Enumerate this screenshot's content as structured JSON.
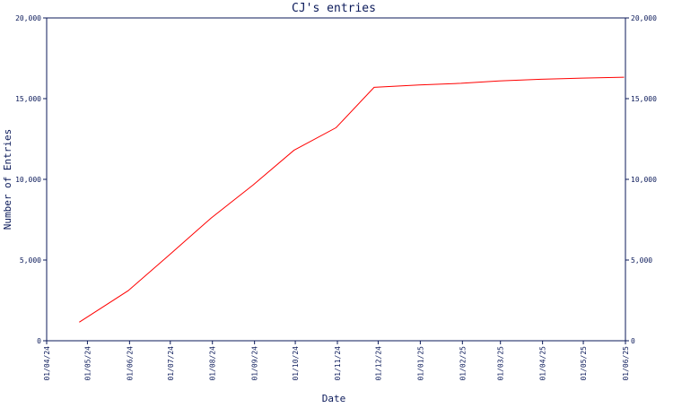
{
  "chart_data": {
    "type": "line",
    "title": "CJ's entries",
    "xlabel": "Date",
    "ylabel": "Number of Entries",
    "x_ticks": [
      "01/04/24",
      "01/05/24",
      "01/06/24",
      "01/07/24",
      "01/08/24",
      "01/09/24",
      "01/10/24",
      "01/11/24",
      "01/12/24",
      "01/01/25",
      "01/02/25",
      "01/03/25",
      "01/04/25",
      "01/05/25",
      "01/06/25"
    ],
    "y_ticks": [
      "0",
      "5,000",
      "10,000",
      "15,000",
      "20,000"
    ],
    "ylim": [
      0,
      20000
    ],
    "xlim": [
      "01/04/24",
      "01/06/25"
    ],
    "grid": false,
    "right_axis": true,
    "series": [
      {
        "color": "#ff0000",
        "x": [
          "2024-04-25",
          "2024-05-31",
          "2024-06-30",
          "2024-07-31",
          "2024-08-31",
          "2024-09-30",
          "2024-10-31",
          "2024-11-28",
          "2024-12-31",
          "2025-01-31",
          "2025-02-28",
          "2025-03-31",
          "2025-04-30",
          "2025-05-31"
        ],
        "values": [
          1150,
          3100,
          5300,
          7600,
          9650,
          11800,
          13200,
          15700,
          15850,
          15950,
          16100,
          16200,
          16270,
          16330
        ]
      }
    ],
    "colors": {
      "axis": "#0b1a5a",
      "line": "#ff0000"
    }
  }
}
